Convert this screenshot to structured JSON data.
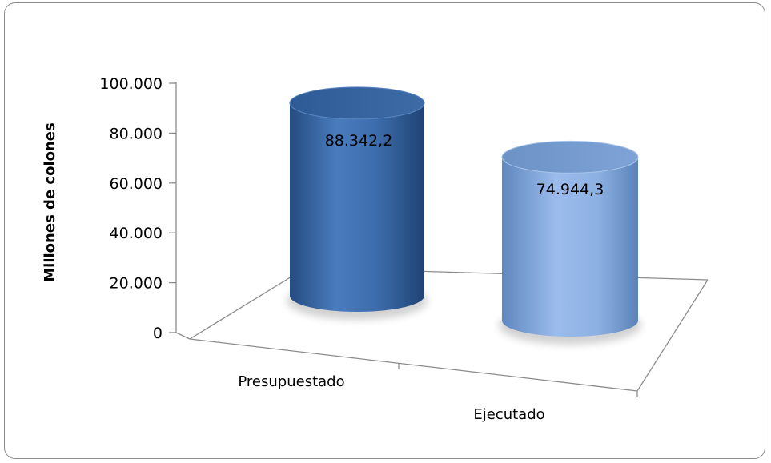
{
  "chart_data": {
    "type": "bar",
    "style": "3d-cylinder",
    "categories": [
      "Presupuestado",
      "Ejecutado"
    ],
    "values": [
      88342.2,
      74944.3
    ],
    "data_labels": [
      "88.342,2",
      "74.944,3"
    ],
    "ylabel": "Millones de colones",
    "ylim": [
      0,
      100000
    ],
    "yticks": [
      0,
      20000,
      40000,
      60000,
      80000,
      100000
    ],
    "ytick_labels": [
      "0",
      "20.000",
      "40.000",
      "60.000",
      "80.000",
      "100.000"
    ],
    "legend": "none",
    "grid": false,
    "colors": {
      "presupuestado": "#3f6fad",
      "ejecutado": "#8db1e3",
      "axis": "#8c8c8c",
      "frame": "#8c8c8c"
    }
  }
}
